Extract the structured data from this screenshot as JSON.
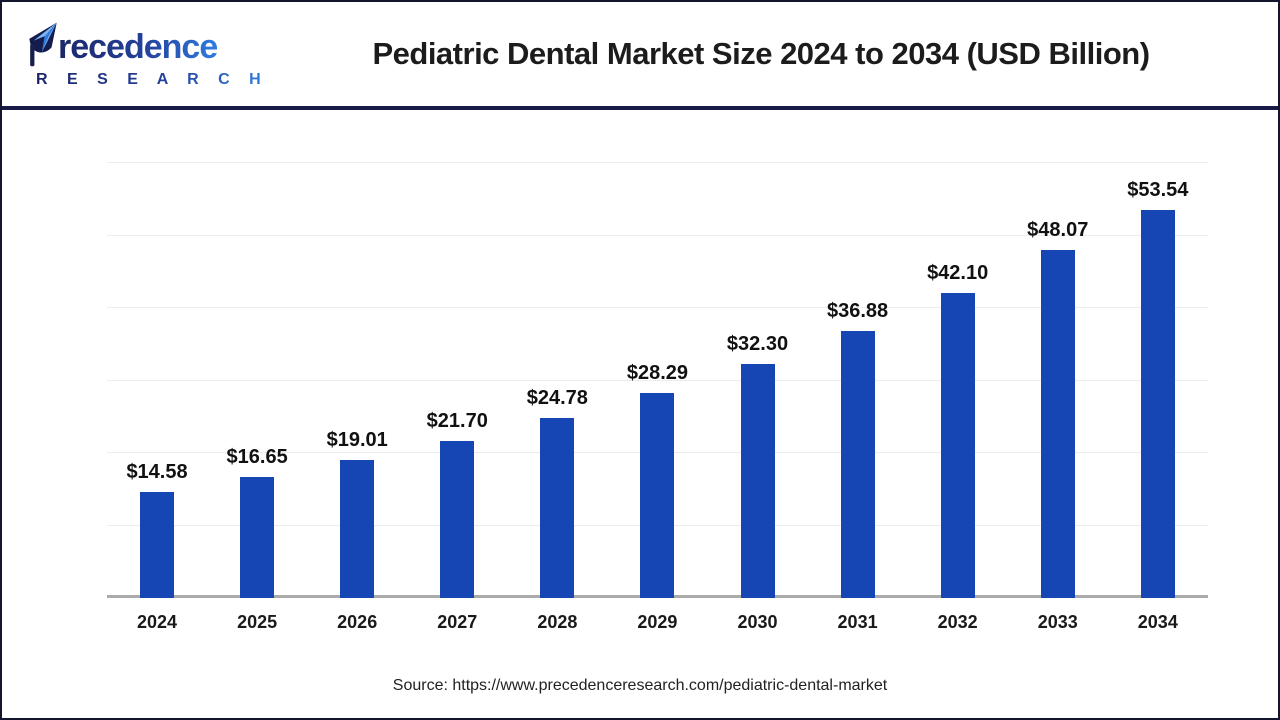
{
  "header": {
    "logo": {
      "word": "Precedence",
      "word_mark_first_letter_in_icon": "P",
      "word_rest": "recedence",
      "subtitle": "R E S E A R C H",
      "navy": "#1b2668",
      "blue": "#2f7ce0"
    },
    "title": "Pediatric Dental Market Size 2024 to 2034 (USD Billion)"
  },
  "chart_data": {
    "type": "bar",
    "title": "Pediatric Dental Market Size 2024 to 2034 (USD Billion)",
    "categories": [
      "2024",
      "2025",
      "2026",
      "2027",
      "2028",
      "2029",
      "2030",
      "2031",
      "2032",
      "2033",
      "2034"
    ],
    "values": [
      14.58,
      16.65,
      19.01,
      21.7,
      24.78,
      28.29,
      32.3,
      36.88,
      42.1,
      48.07,
      53.54
    ],
    "value_labels": [
      "$14.58",
      "$16.65",
      "$19.01",
      "$21.70",
      "$24.78",
      "$28.29",
      "$32.30",
      "$36.88",
      "$42.10",
      "$48.07",
      "$53.54"
    ],
    "xlabel": "",
    "ylabel": "",
    "ylim": [
      0,
      60
    ],
    "yticks": [
      0,
      10,
      20,
      30,
      40,
      50,
      60
    ],
    "grid": "horizontal-light",
    "legend": "none",
    "bar_color": "#1646b4",
    "gridline_color": "#ececec",
    "baseline_color": "#ababab",
    "unit": "USD Billion"
  },
  "footer": {
    "source": "Source: https://www.precedenceresearch.com/pediatric-dental-market"
  }
}
